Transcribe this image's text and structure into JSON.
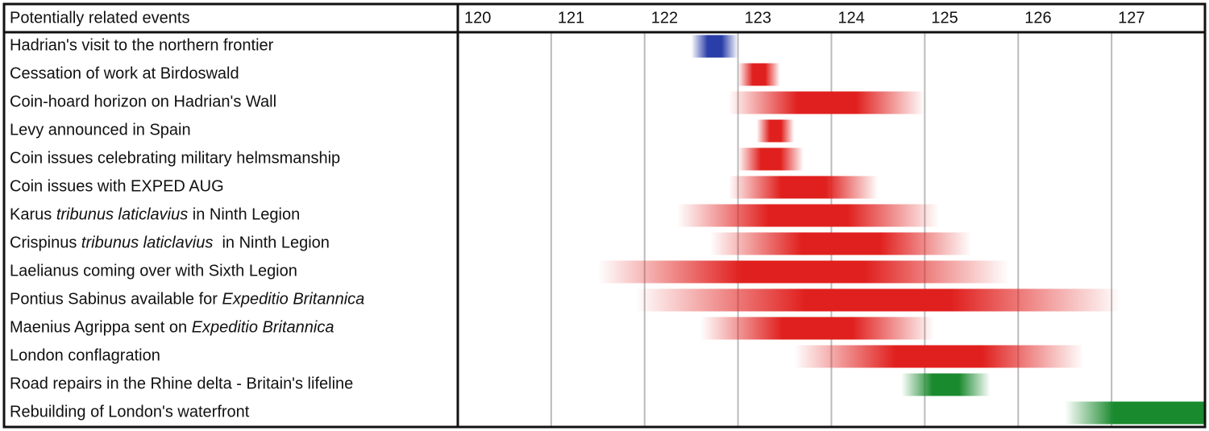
{
  "chart_data": {
    "type": "timeline",
    "header": "Potentially related events",
    "xlim": [
      120,
      128
    ],
    "xticks": [
      120,
      121,
      122,
      123,
      124,
      125,
      126,
      127
    ],
    "grid": true,
    "rows": [
      {
        "label": [
          {
            "text": "Hadrian's visit to the northern frontier"
          }
        ],
        "start": 122.5,
        "end": 123.0,
        "color": "#2a3ea8"
      },
      {
        "label": [
          {
            "text": "Cessation of work at Birdoswald"
          }
        ],
        "start": 123.0,
        "end": 123.45,
        "color": "#e0201e"
      },
      {
        "label": [
          {
            "text": "Coin-hoard horizon on Hadrian's Wall"
          }
        ],
        "start": 122.9,
        "end": 125.0,
        "color": "#e0201e"
      },
      {
        "label": [
          {
            "text": "Levy announced in Spain"
          }
        ],
        "start": 123.2,
        "end": 123.6,
        "color": "#e0201e"
      },
      {
        "label": [
          {
            "text": "Coin issues celebrating military helmsmanship"
          }
        ],
        "start": 123.0,
        "end": 123.7,
        "color": "#e0201e"
      },
      {
        "label": [
          {
            "text": "Coin issues with EXPED AUG"
          }
        ],
        "start": 122.9,
        "end": 124.5,
        "color": "#e0201e"
      },
      {
        "label": [
          {
            "text": "Karus "
          },
          {
            "text": "tribunus laticlavius",
            "italic": true
          },
          {
            "text": " in Ninth Legion"
          }
        ],
        "start": 122.35,
        "end": 125.15,
        "color": "#e0201e"
      },
      {
        "label": [
          {
            "text": "Crispinus "
          },
          {
            "text": "tribunus laticlavius",
            "italic": true
          },
          {
            "text": "  in Ninth Legion"
          }
        ],
        "start": 122.7,
        "end": 125.5,
        "color": "#e0201e"
      },
      {
        "label": [
          {
            "text": "Laelianus coming over with Sixth Legion"
          }
        ],
        "start": 121.5,
        "end": 125.9,
        "color": "#e0201e"
      },
      {
        "label": [
          {
            "text": "Pontius Sabinus available for "
          },
          {
            "text": "Expeditio Britannica",
            "italic": true
          }
        ],
        "start": 121.9,
        "end": 127.1,
        "color": "#e0201e"
      },
      {
        "label": [
          {
            "text": "Maenius Agrippa sent on "
          },
          {
            "text": "Expeditio Britannica",
            "italic": true
          }
        ],
        "start": 122.6,
        "end": 125.1,
        "color": "#e0201e"
      },
      {
        "label": [
          {
            "text": "London conflagration"
          }
        ],
        "start": 123.6,
        "end": 126.7,
        "color": "#e0201e"
      },
      {
        "label": [
          {
            "text": "Road repairs in the Rhine delta - Britain's lifeline"
          }
        ],
        "start": 124.75,
        "end": 125.7,
        "color": "#1a8a2e"
      },
      {
        "label": [
          {
            "text": "Rebuilding of London's waterfront"
          }
        ],
        "start": 126.5,
        "end": 128,
        "color": "#1a8a2e"
      }
    ]
  }
}
